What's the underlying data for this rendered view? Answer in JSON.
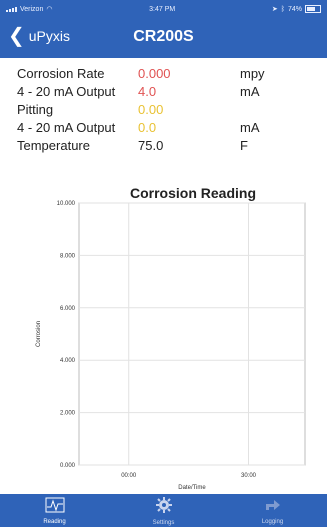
{
  "status": {
    "carrier": "Verizon",
    "time": "3:47 PM",
    "battery": "74%"
  },
  "nav": {
    "back_label": "uPyxis",
    "title": "CR200S"
  },
  "readings": [
    {
      "label": "Corrosion Rate",
      "value": "0.000",
      "unit": "mpy",
      "color": "#e05252"
    },
    {
      "label": "4 - 20 mA Output",
      "value": "4.0",
      "unit": "mA",
      "color": "#e05252"
    },
    {
      "label": "Pitting",
      "value": "0.00",
      "unit": "",
      "color": "#e9c233"
    },
    {
      "label": "4 - 20 mA Output",
      "value": "0.0",
      "unit": "mA",
      "color": "#e9c233"
    },
    {
      "label": "Temperature",
      "value": "75.0",
      "unit": "F",
      "color": "#222222"
    }
  ],
  "chart_data": {
    "type": "line",
    "title": "Corrosion Reading",
    "xlabel": "Date/Time",
    "ylabel": "Corrosion",
    "x_ticks": [
      "00:00",
      "30:00"
    ],
    "y_ticks": [
      "0.000",
      "2.000",
      "4.000",
      "6.000",
      "8.000",
      "10.000"
    ],
    "ylim": [
      0,
      10
    ],
    "series": [],
    "grid": true
  },
  "tabs": [
    {
      "label": "Reading",
      "icon": "chart-pulse-icon",
      "active": true
    },
    {
      "label": "Settings",
      "icon": "gear-icon",
      "active": false
    },
    {
      "label": "Logging",
      "icon": "share-icon",
      "active": false
    }
  ]
}
